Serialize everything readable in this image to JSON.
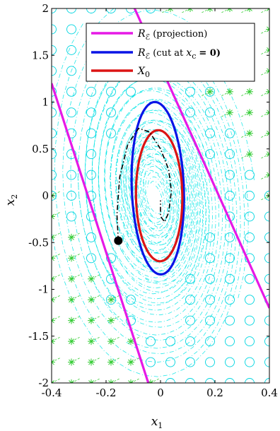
{
  "chart_data": {
    "type": "line",
    "xlabel": "x",
    "xlabel_sub": "1",
    "ylabel": "x",
    "ylabel_sub": "2",
    "xlim": [
      -0.4,
      0.4
    ],
    "ylim": [
      -2,
      2
    ],
    "xticks": [
      "-0.4",
      "-0.2",
      "0",
      "0.2",
      "0.4"
    ],
    "xtick_values": [
      -0.4,
      -0.2,
      0,
      0.2,
      0.4
    ],
    "yticks": [
      "2",
      "1.5",
      "1",
      "0.5",
      "0",
      "-0.5",
      "-1",
      "-1.5",
      "-2"
    ],
    "ytick_values": [
      2,
      1.5,
      1,
      0.5,
      0,
      -0.5,
      -1,
      -1.5,
      -2
    ],
    "legend_position": "top-right",
    "legend": [
      {
        "symbol": "R",
        "sub": "ℰ",
        "text": "(projection)",
        "color": "#e619e6"
      },
      {
        "symbol": "R",
        "sub": "ℰ",
        "text": "(cut at",
        "math": "x",
        "math_sub": "c",
        "tail": "= 0)",
        "color": "#0a14e6"
      },
      {
        "symbol": "X",
        "sub": "0",
        "text": "",
        "color": "#dc1414"
      }
    ],
    "series": [
      {
        "style": "solid",
        "color": "#e619e6",
        "points": [
          [
            -0.4,
            1.2
          ],
          [
            -0.045,
            -2.0
          ]
        ]
      },
      {
        "style": "solid",
        "color": "#e619e6",
        "points": [
          [
            -0.095,
            2.0
          ],
          [
            0.4,
            -1.2
          ]
        ]
      },
      {
        "style": "closed",
        "color": "#0a14e6",
        "center": [
          -0.01,
          0.08
        ],
        "axes": [
          0.095,
          0.92
        ],
        "tilt": -0.11
      },
      {
        "style": "closed",
        "color": "#dc1414",
        "center": [
          -0.005,
          0.0
        ],
        "axes": [
          0.085,
          0.7
        ],
        "tilt": -0.05
      },
      {
        "style": "dashdot",
        "color": "#000000",
        "points": [
          [
            -0.155,
            -0.48
          ],
          [
            -0.16,
            -0.2
          ],
          [
            -0.15,
            0.2
          ],
          [
            -0.12,
            0.55
          ],
          [
            -0.08,
            0.72
          ],
          [
            -0.04,
            0.68
          ],
          [
            0.0,
            0.5
          ],
          [
            0.03,
            0.28
          ],
          [
            0.04,
            0.05
          ],
          [
            0.03,
            -0.18
          ],
          [
            0.015,
            -0.28
          ],
          [
            0.0,
            -0.22
          ],
          [
            0.0,
            -0.05
          ]
        ]
      }
    ],
    "marker": {
      "x": -0.155,
      "y": -0.48,
      "color": "#000000"
    },
    "colors": {
      "trajectories": "#00e5e5",
      "star_region": "#33cc33",
      "circle_markers": "#00d5e0"
    }
  }
}
